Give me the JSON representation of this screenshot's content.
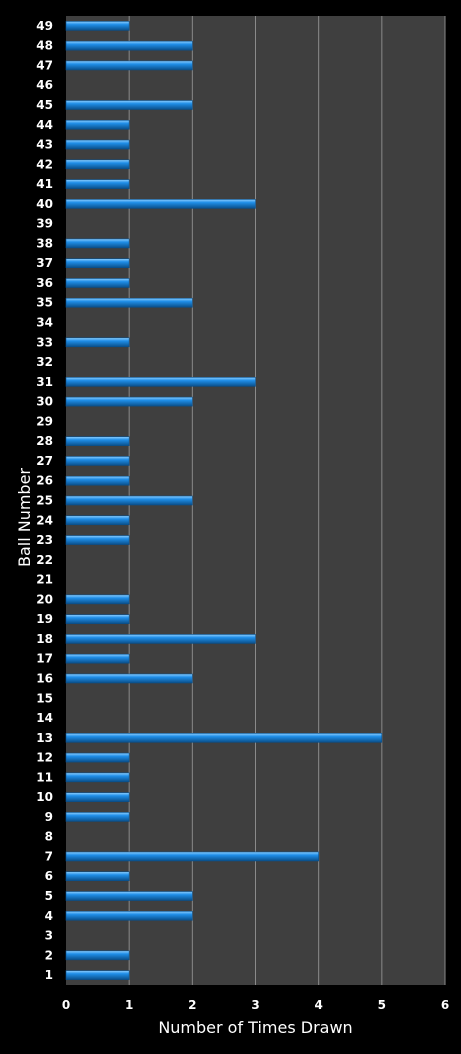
{
  "chart_data": {
    "type": "bar",
    "orientation": "horizontal",
    "xlabel": "Number of Times Drawn",
    "ylabel": "Ball Number",
    "xlim": [
      0,
      6
    ],
    "xticks": [
      "0",
      "1",
      "2",
      "3",
      "4",
      "5",
      "6"
    ],
    "grid": true,
    "legend": "none",
    "colors": {
      "background": "#000000",
      "plot_area": "#3f3f3f",
      "gridline": "#8a8a8a",
      "bar": "#1f8ee8",
      "bar_highlight": "#8fd0ff",
      "bar_shadow": "#0a4f8a",
      "text": "#ffffff"
    },
    "categories": [
      "1",
      "2",
      "3",
      "4",
      "5",
      "6",
      "7",
      "8",
      "9",
      "10",
      "11",
      "12",
      "13",
      "14",
      "15",
      "16",
      "17",
      "18",
      "19",
      "20",
      "21",
      "22",
      "23",
      "24",
      "25",
      "26",
      "27",
      "28",
      "29",
      "30",
      "31",
      "32",
      "33",
      "34",
      "35",
      "36",
      "37",
      "38",
      "39",
      "40",
      "41",
      "42",
      "43",
      "44",
      "45",
      "46",
      "47",
      "48",
      "49"
    ],
    "values": [
      1,
      1,
      0,
      2,
      2,
      1,
      4,
      0,
      1,
      1,
      1,
      1,
      5,
      0,
      0,
      2,
      1,
      3,
      1,
      1,
      0,
      0,
      1,
      1,
      2,
      1,
      1,
      1,
      0,
      2,
      3,
      0,
      1,
      0,
      2,
      1,
      1,
      1,
      0,
      3,
      1,
      1,
      1,
      1,
      2,
      0,
      2,
      2,
      1
    ]
  }
}
